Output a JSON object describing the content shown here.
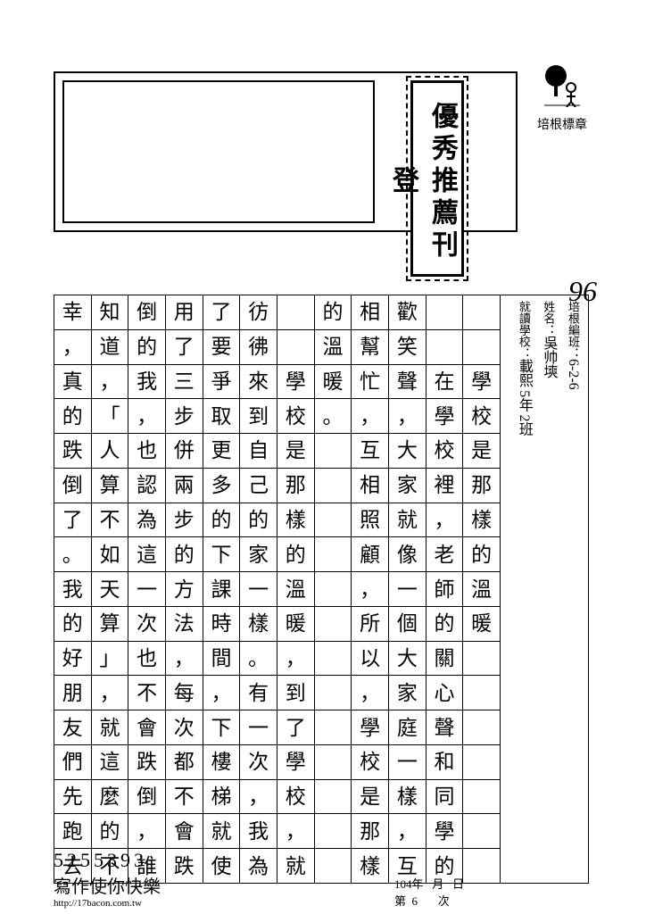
{
  "badge_label": "培根標章",
  "stamp_text": "優秀推薦刊登",
  "score": "96",
  "header": {
    "class_label": "培根編班：",
    "class_value": "6-2-6",
    "name_label": "姓名：",
    "name_value": "吳帅塽",
    "school_label": "就讀學校：",
    "school_value": "載熙",
    "grade_label_a": "5年",
    "grade_label_b": "2班"
  },
  "columns": [
    [
      "",
      "",
      "學",
      "校",
      "是",
      "那",
      "樣",
      "的",
      "溫",
      "暖",
      "",
      "",
      ""
    ],
    [
      "",
      "",
      "在",
      "學",
      "校",
      "裡",
      "，",
      "老",
      "師",
      "的",
      "關",
      "心",
      "聲",
      "和",
      "同",
      "學",
      "的"
    ],
    [
      "歡",
      "笑",
      "聲",
      "，",
      "大",
      "家",
      "就",
      "像",
      "一",
      "個",
      "大",
      "家",
      "庭",
      "一",
      "樣",
      "，",
      "互"
    ],
    [
      "相",
      "幫",
      "忙",
      "，",
      "互",
      "相",
      "照",
      "顧",
      "，",
      "所",
      "以",
      "，",
      "學",
      "校",
      "是",
      "那",
      "樣"
    ],
    [
      "的",
      "溫",
      "暖",
      "。",
      "",
      "",
      "",
      "",
      "",
      "",
      "",
      "",
      "",
      "",
      "",
      "",
      ""
    ],
    [
      "",
      "",
      "學",
      "校",
      "是",
      "那",
      "樣",
      "的",
      "溫",
      "暖",
      "，",
      "到",
      "了",
      "學",
      "校",
      "，",
      "就"
    ],
    [
      "彷",
      "彿",
      "來",
      "到",
      "自",
      "己",
      "的",
      "家",
      "一",
      "樣",
      "。",
      "有",
      "一",
      "次",
      "，",
      "我",
      "為"
    ],
    [
      "了",
      "要",
      "爭",
      "取",
      "更",
      "多",
      "的",
      "下",
      "課",
      "時",
      "間",
      "，",
      "下",
      "樓",
      "梯",
      "就",
      "使"
    ],
    [
      "用",
      "了",
      "三",
      "步",
      "併",
      "兩",
      "步",
      "的",
      "方",
      "法",
      "，",
      "每",
      "次",
      "都",
      "不",
      "會",
      "跌"
    ],
    [
      "倒",
      "的",
      "我",
      "，",
      "也",
      "認",
      "為",
      "這",
      "一",
      "次",
      "也",
      "不",
      "會",
      "跌",
      "倒",
      "，",
      "誰"
    ],
    [
      "知",
      "道",
      "，",
      "「",
      "人",
      "算",
      "不",
      "如",
      "天",
      "算",
      "」",
      "，",
      "就",
      "這",
      "麼",
      "的",
      "不"
    ],
    [
      "幸",
      "，",
      "真",
      "的",
      "跌",
      "倒",
      "了",
      "。",
      "我",
      "的",
      "好",
      "朋",
      "友",
      "們",
      "先",
      "跑",
      "去"
    ]
  ],
  "footer": {
    "serial": "5255393",
    "slogan": "寫作使你快樂",
    "url": "http://17bacon.com.tw",
    "date_year_label": "年",
    "date_year": "104",
    "date_month_label": "月",
    "date_month": "",
    "date_day_label": "日",
    "page_label": "第",
    "page_value": "6",
    "seq_label": "次"
  }
}
